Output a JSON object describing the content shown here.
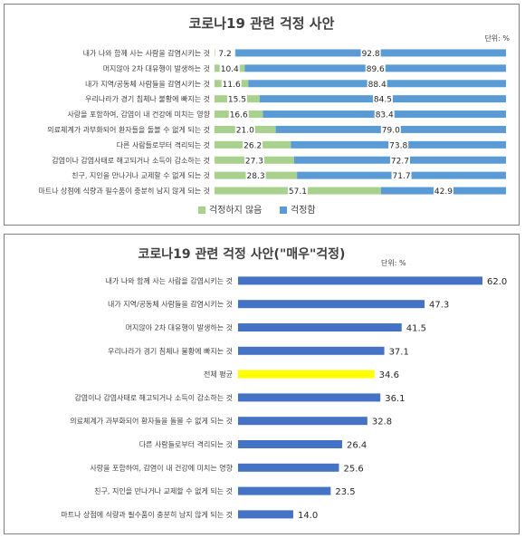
{
  "chart_data": [
    {
      "type": "bar",
      "orientation": "horizontal",
      "stacked": true,
      "percent": true,
      "title": "코로나19 관련 걱정 사안",
      "unit_note": "단위: %",
      "categories": [
        "내가 나와 함께 사는 사람을 감염시키는 것",
        "머지않아 2차 대유행이 발생하는 것",
        "내가 지역/공동체 사람들을 감염시키는 것",
        "우리나라가 경기 침체나 불황에 빠지는 것",
        "사랑을 포함하여, 감염이 내 건강에 미치는 영향",
        "의료체계가 과부화되어 환자들을 돌볼 수 없게 되는 것",
        "다른 사람들로부터 격리되는 것",
        "감염이나 감염사태로 해고되거나 소득이 감소하는 것",
        "친구, 지인을 만나거나 교제할 수 없게 되는 것",
        "마트나 상점에 식량과 필수품이 충분히 남지 않게 되는 것"
      ],
      "series": [
        {
          "name": "걱정하지 않음",
          "color": "#a9d18e",
          "values": [
            7.2,
            10.4,
            11.6,
            15.5,
            16.6,
            21.0,
            26.2,
            27.3,
            28.3,
            57.1
          ]
        },
        {
          "name": "걱정함",
          "color": "#5b9bd5",
          "values": [
            92.8,
            89.6,
            88.4,
            84.5,
            83.4,
            79.0,
            73.8,
            72.7,
            71.7,
            42.9
          ]
        }
      ],
      "data_labels": {
        "걱정하지 않음": [
          "7.2",
          "10.4",
          "11.6",
          "15.5",
          "16.6",
          "21.0",
          "26.2",
          "27.3",
          "28.3",
          "57.1"
        ],
        "걱정함": [
          "92.8",
          "89.6",
          "88.4",
          "84.5",
          "83.4",
          "79.0",
          "73.8",
          "72.7",
          "71.7",
          "42.9"
        ]
      },
      "legend_position": "bottom",
      "grid": false
    },
    {
      "type": "bar",
      "orientation": "horizontal",
      "title": "코로나19 관련 걱정 사안(\"매우\"걱정)",
      "unit_note": "단위: %",
      "categories": [
        "내가 나와 함께 사는 사람을 감염시키는 것",
        "내가 지역/공동체 사람들을 감염시키는 것",
        "머지않아 2차 대유행이 발생하는 것",
        "우리나라가 경기 침체나 불황에 빠지는 것",
        "전체 평균",
        "감염이나 감염사태로 해고되거나 소득이 감소하는 것",
        "의료체계가 과부화되어 환자들을 돌볼 수 없게 되는 것",
        "다른 사람들로부터 격리되는 것",
        "사랑을 포함하여, 감염이 내 건강에 미치는 영향",
        "친구, 지인을 만나거나 교제할 수 없게 되는 것",
        "마트나 상점에 식량과 필수품이 충분히 남지 않게 되는 것"
      ],
      "values": [
        62.0,
        47.3,
        41.5,
        37.1,
        34.6,
        36.1,
        32.8,
        26.4,
        25.6,
        23.5,
        14.0
      ],
      "value_labels": [
        "62.0",
        "47.3",
        "41.5",
        "37.1",
        "34.6",
        "36.1",
        "32.8",
        "26.4",
        "25.6",
        "23.5",
        "14.0"
      ],
      "colors": {
        "default": "#4472c4",
        "highlight": "#ffff00"
      },
      "highlight_category": "전체 평균",
      "xlim": [
        0,
        70
      ],
      "grid": false
    }
  ]
}
